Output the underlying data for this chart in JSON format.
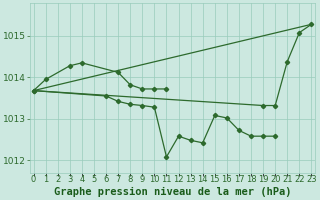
{
  "xlabel": "Graphe pression niveau de la mer (hPa)",
  "hours": [
    0,
    1,
    2,
    3,
    4,
    5,
    6,
    7,
    8,
    9,
    10,
    11,
    12,
    13,
    14,
    15,
    16,
    17,
    18,
    19,
    20,
    21,
    22,
    23
  ],
  "line_upper": [
    [
      0,
      1013.68
    ],
    [
      23,
      1015.28
    ]
  ],
  "line_lower": [
    [
      0,
      1013.68
    ],
    [
      19,
      1013.32
    ]
  ],
  "line_rise": [
    [
      19,
      1013.32
    ],
    [
      20,
      1013.32
    ],
    [
      21,
      1014.38
    ],
    [
      22,
      1015.08
    ],
    [
      23,
      1015.28
    ]
  ],
  "line_mid": [
    [
      0,
      1013.68
    ],
    [
      1,
      1013.95
    ],
    [
      3,
      1014.28
    ],
    [
      4,
      1014.35
    ],
    [
      7,
      1014.12
    ],
    [
      8,
      1013.82
    ],
    [
      9,
      1013.72
    ],
    [
      10,
      1013.72
    ],
    [
      11,
      1013.72
    ]
  ],
  "line_detail": [
    [
      0,
      1013.68
    ],
    [
      6,
      1013.55
    ],
    [
      7,
      1013.42
    ],
    [
      8,
      1013.35
    ],
    [
      9,
      1013.32
    ],
    [
      10,
      1013.28
    ],
    [
      11,
      1012.08
    ],
    [
      12,
      1012.58
    ],
    [
      13,
      1012.48
    ],
    [
      14,
      1012.42
    ],
    [
      15,
      1013.08
    ],
    [
      16,
      1013.02
    ],
    [
      17,
      1012.72
    ],
    [
      18,
      1012.58
    ],
    [
      19,
      1012.58
    ],
    [
      20,
      1012.58
    ]
  ],
  "ylim": [
    1011.7,
    1015.8
  ],
  "yticks": [
    1012,
    1013,
    1014,
    1015
  ],
  "bg_color": "#cce8e0",
  "line_color": "#2d6a2d",
  "grid_color": "#99ccbb",
  "label_color": "#1a5c1a",
  "tick_color": "#2d6a2d",
  "font_size": 6.5,
  "xlabel_fontsize": 7.5
}
